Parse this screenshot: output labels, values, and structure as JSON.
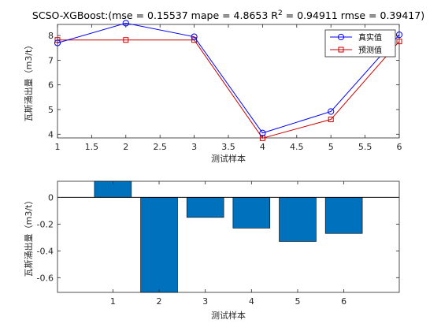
{
  "chart_data": [
    {
      "type": "line",
      "title": "SCSO-XGBoost:(mse = 0.15537 mape = 4.8653  R",
      "title_sup": "2",
      "title_tail": " = 0.94911 rmse = 0.39417)",
      "xlabel": "测试样本",
      "ylabel": "瓦斯涌出量（m3/t）",
      "xlim": [
        1,
        6
      ],
      "ylim": [
        3.85,
        8.45
      ],
      "xticks": [
        1,
        1.5,
        2,
        2.5,
        3,
        3.5,
        4,
        4.5,
        5,
        5.5,
        6
      ],
      "xtick_labels": [
        "1",
        "1.5",
        "2",
        "2.5",
        "3",
        "3.5",
        "4",
        "4.5",
        "5",
        "5.5",
        "6"
      ],
      "yticks": [
        4,
        5,
        6,
        7,
        8
      ],
      "ytick_labels": [
        "4",
        "5",
        "6",
        "7",
        "8"
      ],
      "grid": false,
      "legend_position": "top-right",
      "x": [
        1,
        2,
        3,
        4,
        5,
        6
      ],
      "series": [
        {
          "name": "真实值",
          "color": "#0000ff",
          "marker": "circle",
          "values": [
            7.7,
            8.5,
            7.95,
            4.05,
            4.92,
            8.03
          ]
        },
        {
          "name": "预测值",
          "color": "#cc0000",
          "marker": "square",
          "values": [
            7.82,
            7.82,
            7.82,
            3.84,
            4.6,
            7.76
          ]
        }
      ]
    },
    {
      "type": "bar",
      "xlabel": "测试样本",
      "ylabel": "瓦斯涌出量（m3/t）",
      "xlim": [
        -0.2,
        7.2
      ],
      "ylim": [
        -0.71,
        0.12
      ],
      "categories": [
        "1",
        "2",
        "3",
        "4",
        "5",
        "6"
      ],
      "yticks": [
        0,
        -0.2,
        -0.4,
        -0.6
      ],
      "ytick_labels": [
        "0",
        "-0.2",
        "-0.4",
        "-0.6"
      ],
      "grid": false,
      "bar_color": "#0072bd",
      "values": [
        0.12,
        -0.71,
        -0.15,
        -0.23,
        -0.33,
        -0.27
      ]
    }
  ]
}
